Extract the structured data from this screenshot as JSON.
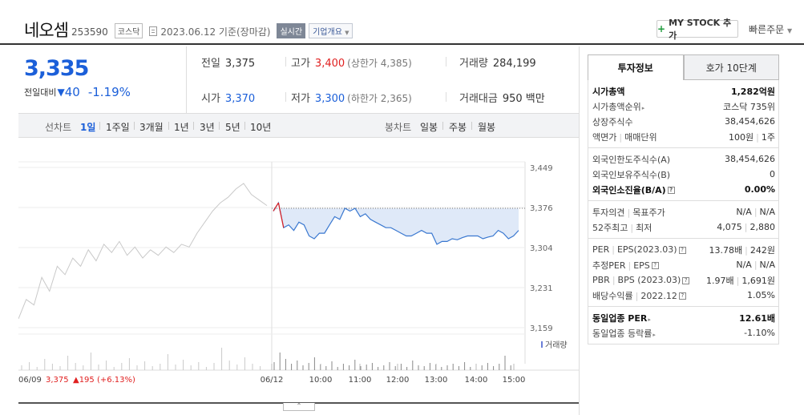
{
  "header": {
    "stock_name": "네오셈",
    "stock_code": "253590",
    "market": "코스닥",
    "date": "2023.06.12 기준(장마감)",
    "realtime": "실시간",
    "company_info": "기업개요",
    "my_stock": "MY STOCK 추가",
    "quick_order": "빠른주문"
  },
  "price": {
    "current": "3,335",
    "prev_label": "전일대비",
    "change": "40",
    "change_pct": "-1.19%"
  },
  "stats": {
    "prev_close_label": "전일",
    "prev_close": "3,375",
    "high_label": "고가",
    "high": "3,400",
    "upper_limit": "(상한가 4,385)",
    "volume_label": "거래량",
    "volume": "284,199",
    "open_label": "시가",
    "open": "3,370",
    "low_label": "저가",
    "low": "3,300",
    "lower_limit": "(하한가 2,365)",
    "amount_label": "거래대금",
    "amount": "950 백만"
  },
  "period_bar": {
    "line_chart_label": "선차트",
    "periods": [
      "1일",
      "1주일",
      "3개월",
      "1년",
      "3년",
      "5년",
      "10년"
    ],
    "selected": "1일",
    "candle_label": "봉차트",
    "candles": [
      "일봉",
      "주봉",
      "월봉"
    ]
  },
  "chart_data": {
    "type": "line",
    "y_ticks": [
      "3,449",
      "3,376",
      "3,304",
      "3,231",
      "3,159"
    ],
    "ylim": [
      3159,
      3449
    ],
    "prev_close": 3375,
    "volume_label": "거래량",
    "prev_day_info": "06/09",
    "prev_day_price": "3,375",
    "prev_day_change": "▲195 (+6.13%)",
    "x_labels": [
      "06/12",
      "10:00",
      "11:00",
      "12:00",
      "13:00",
      "14:00",
      "15:00"
    ],
    "prev_day_series": [
      3175,
      3210,
      3200,
      3250,
      3225,
      3270,
      3255,
      3285,
      3270,
      3300,
      3280,
      3310,
      3295,
      3315,
      3290,
      3305,
      3285,
      3300,
      3290,
      3305,
      3295,
      3310,
      3305,
      3330,
      3350,
      3370,
      3385,
      3395,
      3410,
      3420,
      3400,
      3390,
      3380
    ],
    "today_series": [
      3370,
      3385,
      3340,
      3345,
      3335,
      3350,
      3345,
      3325,
      3320,
      3330,
      3330,
      3345,
      3360,
      3355,
      3375,
      3370,
      3375,
      3360,
      3365,
      3355,
      3350,
      3345,
      3340,
      3340,
      3335,
      3330,
      3325,
      3325,
      3330,
      3335,
      3330,
      3330,
      3310,
      3315,
      3315,
      3320,
      3318,
      3322,
      3325,
      3325,
      3325,
      3320,
      3323,
      3325,
      3335,
      3330,
      3320,
      3325,
      3335
    ]
  },
  "invest": {
    "tab_active": "투자정보",
    "tab_inactive": "호가 10단계",
    "market_cap_label": "시가총액",
    "market_cap": "1,282억원",
    "market_cap_rank_label": "시가총액순위",
    "market_cap_rank": "코스닥 735위",
    "shares_label": "상장주식수",
    "shares": "38,454,626",
    "face_label": "액면가",
    "unit_label": "매매단위",
    "face": "100원",
    "unit": "1주",
    "foreign_limit_label": "외국인한도주식수(A)",
    "foreign_limit": "38,454,626",
    "foreign_hold_label": "외국인보유주식수(B)",
    "foreign_hold": "0",
    "foreign_ratio_label": "외국인소진율(B/A)",
    "foreign_ratio": "0.00%",
    "opinion_label": "투자의견",
    "target_label": "목표주가",
    "opinion": "N/A",
    "target": "N/A",
    "week52_high_label": "52주최고",
    "week52_low_label": "최저",
    "week52_high": "4,075",
    "week52_low": "2,880",
    "per_label": "PER",
    "eps_label": "EPS(2023.03)",
    "per": "13.78배",
    "eps": "242원",
    "est_per_label": "추정PER",
    "est_eps_label": "EPS",
    "est_per": "N/A",
    "est_eps": "N/A",
    "pbr_label": "PBR",
    "bps_label": "BPS (2023.03)",
    "pbr": "1.97배",
    "bps": "1,691원",
    "dividend_label": "배당수익률",
    "dividend_date": "2022.12",
    "dividend": "1.05%",
    "sector_per_label": "동일업종 PER",
    "sector_per": "12.61배",
    "sector_rate_label": "동일업종 등락률",
    "sector_rate": "-1.10%"
  }
}
